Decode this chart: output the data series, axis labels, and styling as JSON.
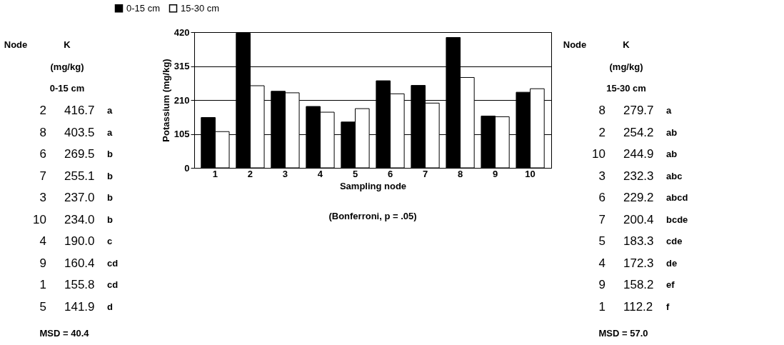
{
  "chart_data": [
    {
      "type": "other",
      "annotations": [
        "Node",
        "K",
        "(mg/kg)",
        "0-15 cm",
        "MSD = 40.4",
        "a",
        "a",
        "b",
        "b",
        "b",
        "b",
        "c",
        "cd",
        "cd",
        "d"
      ],
      "categories": [
        "2",
        "8",
        "6",
        "7",
        "3",
        "10",
        "4",
        "9",
        "1",
        "5"
      ],
      "value_labels": [
        "416.7",
        "403.5",
        "269.5",
        "255.1",
        "237.0",
        "234.0",
        "190.0",
        "160.4",
        "155.8",
        "141.9"
      ]
    },
    {
      "type": "bar",
      "categories": [
        "1",
        "2",
        "3",
        "4",
        "5",
        "6",
        "7",
        "8",
        "9",
        "10"
      ],
      "series": [
        {
          "name": "0-15 cm",
          "color": "#000000",
          "values": [
            155.8,
            416.7,
            237.0,
            190.0,
            141.9,
            269.5,
            255.1,
            403.5,
            160.4,
            234.0
          ]
        },
        {
          "name": "15-30 cm",
          "color": "#ffffff",
          "values": [
            112.2,
            254.2,
            232.3,
            172.3,
            183.3,
            229.2,
            200.4,
            279.7,
            158.2,
            244.9
          ]
        }
      ],
      "ylim": [
        0,
        420
      ],
      "yticks": [
        0,
        105,
        210,
        315,
        420
      ],
      "grid": "y",
      "legend": "top",
      "ylabel": "Potassium (mg/kg)",
      "xlabel": "Sampling node",
      "annotations": [
        "(Bonferroni, p = .05)"
      ]
    },
    {
      "type": "other",
      "annotations": [
        "Node",
        "K",
        "(mg/kg)",
        "15-30 cm",
        "MSD = 57.0",
        "a",
        "ab",
        "ab",
        "abc",
        "abcd",
        "bcde",
        "cde",
        "de",
        "ef",
        "f"
      ],
      "categories": [
        "8",
        "2",
        "10",
        "3",
        "6",
        "7",
        "5",
        "4",
        "9",
        "1"
      ],
      "value_labels": [
        "279.7",
        "254.2",
        "244.9",
        "232.3",
        "229.2",
        "200.4",
        "183.3",
        "172.3",
        "158.2",
        "112.2"
      ]
    }
  ]
}
